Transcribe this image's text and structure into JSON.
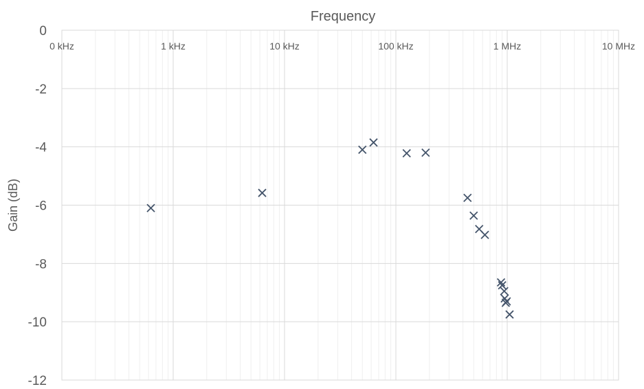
{
  "chart_data": {
    "type": "scatter",
    "title": "Frequency",
    "xlabel": "",
    "ylabel": "Gain (dB)",
    "x_scale": "log",
    "xlim": [
      100,
      10000000
    ],
    "ylim": [
      -12,
      0
    ],
    "y_ticks": [
      "0",
      "-2",
      "-4",
      "-6",
      "-8",
      "-10",
      "-12"
    ],
    "y_tick_values": [
      0,
      -2,
      -4,
      -6,
      -8,
      -10,
      -12
    ],
    "x_ticks": [
      "0 kHz",
      "1 kHz",
      "10 kHz",
      "100 kHz",
      "1 MHz",
      "10 MHz"
    ],
    "x_tick_values": [
      100,
      1000,
      10000,
      100000,
      1000000,
      10000000
    ],
    "x_axis_position": "top",
    "grid": true,
    "marker": "x",
    "marker_color": "#44546a",
    "series": [
      {
        "points": [
          {
            "x": 630,
            "y": -6.1
          },
          {
            "x": 6300,
            "y": -5.58
          },
          {
            "x": 50000,
            "y": -4.1
          },
          {
            "x": 63000,
            "y": -3.85
          },
          {
            "x": 125000,
            "y": -4.22
          },
          {
            "x": 185000,
            "y": -4.2
          },
          {
            "x": 440000,
            "y": -5.75
          },
          {
            "x": 500000,
            "y": -6.36
          },
          {
            "x": 560000,
            "y": -6.82
          },
          {
            "x": 630000,
            "y": -7.02
          },
          {
            "x": 880000,
            "y": -8.65
          },
          {
            "x": 900000,
            "y": -8.75
          },
          {
            "x": 940000,
            "y": -8.95
          },
          {
            "x": 950000,
            "y": -9.2
          },
          {
            "x": 970000,
            "y": -9.35
          },
          {
            "x": 990000,
            "y": -9.3
          },
          {
            "x": 1050000,
            "y": -9.75
          }
        ]
      }
    ]
  }
}
